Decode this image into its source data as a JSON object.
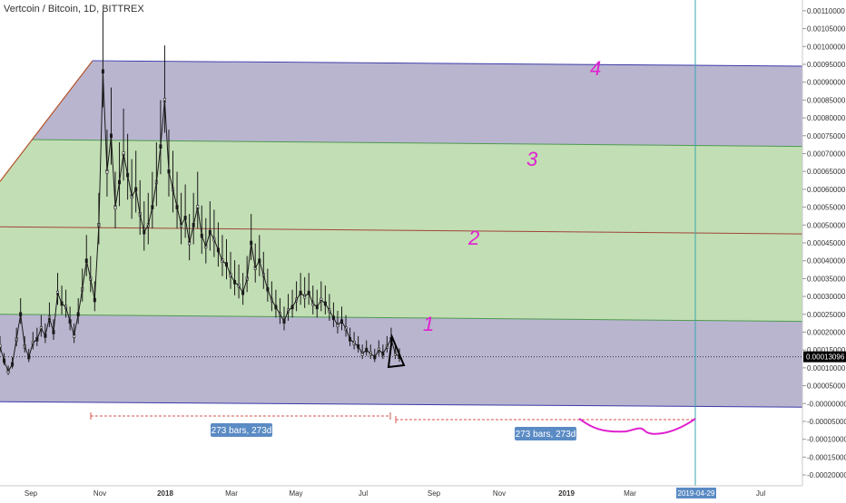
{
  "chart_data": {
    "type": "candlestick",
    "title": "Vertcoin / Bitcoin, 1D, BITTREX",
    "y_ticks": [
      "0.00110000",
      "0.00105000",
      "0.00100000",
      "0.00095000",
      "0.00090000",
      "0.00085000",
      "0.00080000",
      "0.00075000",
      "0.00070000",
      "0.00065000",
      "0.00060000",
      "0.00055000",
      "0.00050000",
      "0.00045000",
      "0.00040000",
      "0.00035000",
      "0.00030000",
      "0.00025000",
      "0.00020000",
      "0.00015000",
      "0.00010000",
      "0.00005000",
      "-0.00000000",
      "-0.00005000",
      "-0.00010000",
      "-0.00015000",
      "-0.00020000"
    ],
    "x_ticks": [
      "Sep",
      "Nov",
      "2018",
      "Mar",
      "May",
      "Jul",
      "Sep",
      "Nov",
      "2019",
      "Mar",
      "2019-04-29",
      "Jul"
    ],
    "ylim": [
      -0.00021,
      0.00112
    ],
    "last_price": "0.00013096",
    "crosshair_date": "2019-04-29",
    "channel_levels": [
      {
        "label": "1",
        "start": 0.00025,
        "end": 0.00023
      },
      {
        "label": "2",
        "start": 0.000495,
        "end": 0.000475
      },
      {
        "label": "3",
        "start": 0.00074,
        "end": 0.00072
      },
      {
        "label": "4",
        "start": 0.00096,
        "end": 0.000945
      }
    ],
    "channel_bottom": {
      "start": 5e-06,
      "end": -1e-05
    },
    "measure_labels": [
      "273 bars, 273d",
      "273 bars, 273d"
    ],
    "price_series": [
      0.00016,
      0.00012,
      9e-05,
      0.00011,
      0.00018,
      0.00025,
      0.00016,
      0.00013,
      0.00017,
      0.00018,
      0.00021,
      0.00019,
      0.00024,
      0.0002,
      0.00031,
      0.00028,
      0.00027,
      0.00023,
      0.00019,
      0.00025,
      0.00032,
      0.0004,
      0.00035,
      0.00029,
      0.0005,
      0.00093,
      0.00065,
      0.00075,
      0.00055,
      0.00062,
      0.0007,
      0.00064,
      0.00058,
      0.0006,
      0.00053,
      0.00048,
      0.0005,
      0.00055,
      0.00062,
      0.00072,
      0.00085,
      0.00065,
      0.0006,
      0.00055,
      0.0005,
      0.00052,
      0.00045,
      0.0005,
      0.00055,
      0.00047,
      0.00044,
      0.00048,
      0.00046,
      0.00043,
      0.0004,
      0.00039,
      0.00036,
      0.00034,
      0.00033,
      0.00031,
      0.00035,
      0.00045,
      0.00038,
      0.0004,
      0.00036,
      0.00032,
      0.00029,
      0.00027,
      0.00025,
      0.00023,
      0.00026,
      0.00027,
      0.00029,
      0.00031,
      0.0003,
      0.00031,
      0.00028,
      0.00027,
      0.00029,
      0.00028,
      0.00026,
      0.00024,
      0.00022,
      0.00023,
      0.00021,
      0.00018,
      0.00017,
      0.00016,
      0.00014,
      0.00015,
      0.00014,
      0.00013,
      0.00015,
      0.00014,
      0.00016,
      0.00018,
      0.00014,
      0.00013096
    ],
    "series_x_range": [
      0,
      440
    ]
  }
}
